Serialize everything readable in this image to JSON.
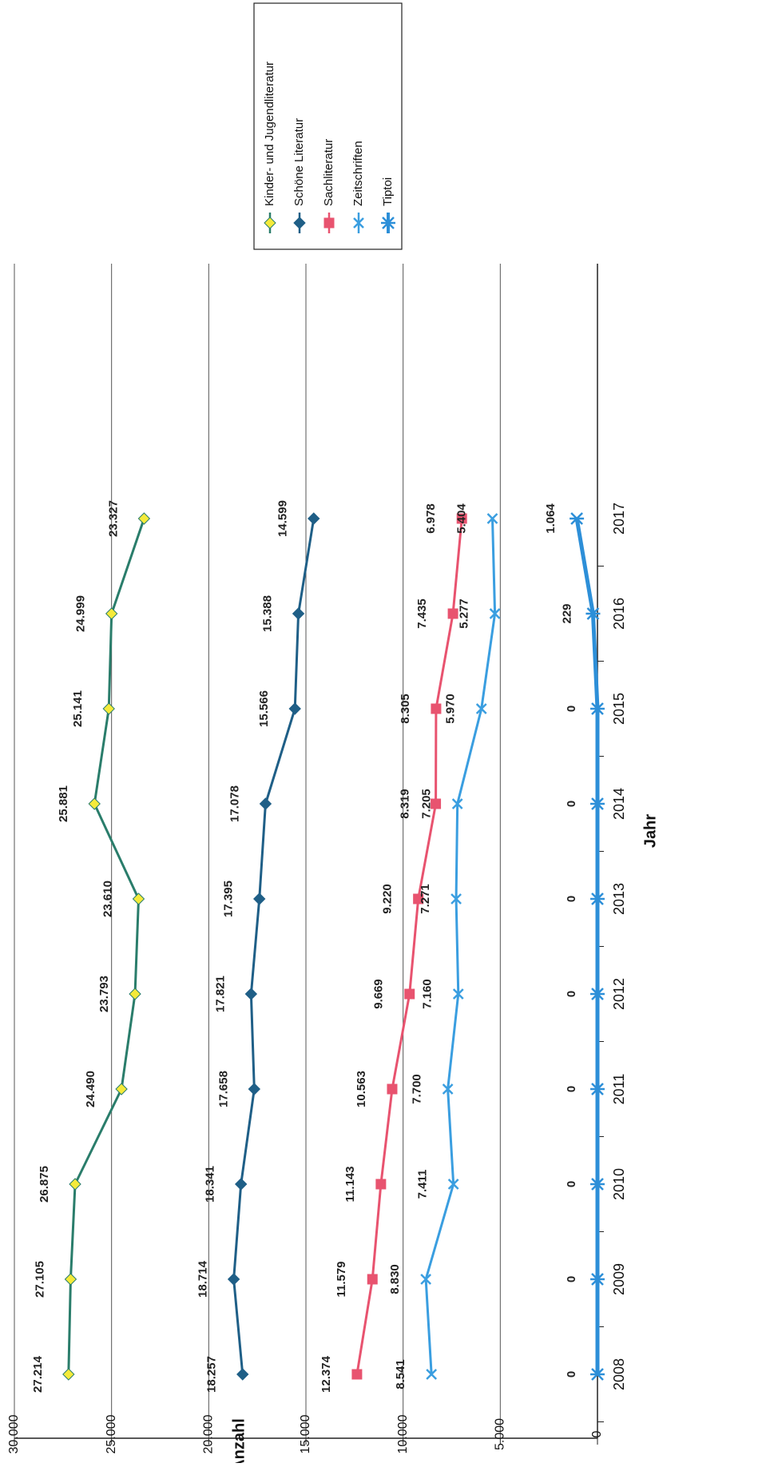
{
  "chart_data": {
    "type": "line",
    "orientation": "rotated-90-ccw",
    "xlabel": "Jahr",
    "ylabel": "Anzahl",
    "ylim": [
      0,
      30000
    ],
    "y_ticks": [
      "0",
      "5.000",
      "10.000",
      "15.000",
      "20.000",
      "25.000",
      "30.000"
    ],
    "categories": [
      "2008",
      "2009",
      "2010",
      "2011",
      "2012",
      "2013",
      "2014",
      "2015",
      "2016",
      "2017"
    ],
    "grid": true,
    "legend_position": "top-right",
    "series": [
      {
        "name": "Kinder- und Jugendliteratur",
        "color": "#2a7d6b",
        "marker_color": "#f5ea3a",
        "marker": "diamond",
        "values": [
          27214,
          27105,
          26875,
          24490,
          23793,
          23610,
          25881,
          25141,
          24999,
          23327
        ],
        "labels": [
          "27.214",
          "27.105",
          "26.875",
          "24.490",
          "23.793",
          "23.610",
          "25.881",
          "25.141",
          "24.999",
          "23.327"
        ]
      },
      {
        "name": "Schöne Literatur",
        "color": "#1f5f87",
        "marker_color": "#1f5f87",
        "marker": "diamond",
        "values": [
          18257,
          18714,
          18341,
          17658,
          17821,
          17395,
          17078,
          15566,
          15388,
          14599
        ],
        "labels": [
          "18.257",
          "18.714",
          "18.341",
          "17.658",
          "17.821",
          "17.395",
          "17.078",
          "15.566",
          "15.388",
          "14.599"
        ]
      },
      {
        "name": "Sachliteratur",
        "color": "#e8536f",
        "marker_color": "#e8536f",
        "marker": "square",
        "values": [
          12374,
          11579,
          11143,
          10563,
          9669,
          9220,
          8319,
          8305,
          7435,
          6978
        ],
        "labels": [
          "12.374",
          "11.579",
          "11.143",
          "10.563",
          "9.669",
          "9.220",
          "8.319",
          "8.305",
          "7.435",
          "6.978"
        ]
      },
      {
        "name": "Zeitschriften",
        "color": "#3a9ee0",
        "marker_color": "#3a9ee0",
        "marker": "x",
        "values": [
          8541,
          8830,
          7411,
          7700,
          7160,
          7271,
          7205,
          5970,
          5277,
          5404
        ],
        "labels": [
          "8.541",
          "8.830",
          "7.411",
          "7.700",
          "7.160",
          "7.271",
          "7.205",
          "5.970",
          "5.277",
          "5.404"
        ]
      },
      {
        "name": "Tiptoi",
        "color": "#2d8fd8",
        "marker_color": "#2d8fd8",
        "marker": "asterisk",
        "values": [
          0,
          0,
          0,
          0,
          0,
          0,
          0,
          0,
          229,
          1064
        ],
        "labels": [
          "0",
          "0",
          "0",
          "0",
          "0",
          "0",
          "0",
          "0",
          "229",
          "1.064"
        ]
      }
    ]
  }
}
